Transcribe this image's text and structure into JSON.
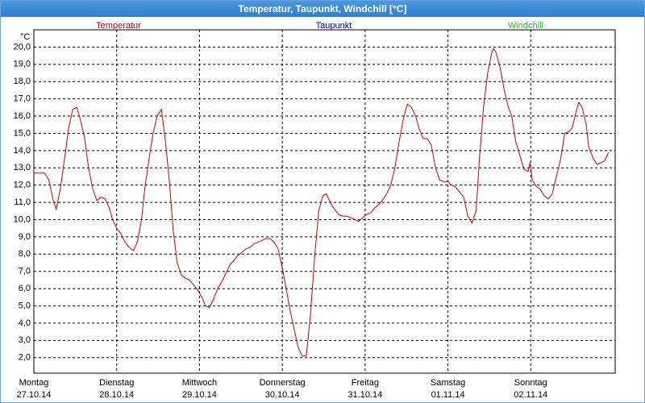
{
  "chart_data": {
    "type": "line",
    "title": "Temperatur, Taupunkt, Windchill [°C]",
    "ylabel": "°C",
    "xlim": [
      0,
      7
    ],
    "ylim": [
      1.1,
      21
    ],
    "grid": true,
    "xticks": [
      {
        "value": 0,
        "label": "Montag",
        "sublabel": "27.10.14"
      },
      {
        "value": 1,
        "label": "Dienstag",
        "sublabel": "28.10.14"
      },
      {
        "value": 2,
        "label": "Mittwoch",
        "sublabel": "29.10.14"
      },
      {
        "value": 3,
        "label": "Donnerstag",
        "sublabel": "30.10.14"
      },
      {
        "value": 4,
        "label": "Freitag",
        "sublabel": "31.10.14"
      },
      {
        "value": 5,
        "label": "Samstag",
        "sublabel": "01.11.14"
      },
      {
        "value": 6,
        "label": "Sonntag",
        "sublabel": "02.11.14"
      }
    ],
    "yticks": [
      {
        "value": 2,
        "label": "2,0"
      },
      {
        "value": 3,
        "label": "3,0"
      },
      {
        "value": 4,
        "label": "4,0"
      },
      {
        "value": 5,
        "label": "5,0"
      },
      {
        "value": 6,
        "label": "6,0"
      },
      {
        "value": 7,
        "label": "7,0"
      },
      {
        "value": 8,
        "label": "8,0"
      },
      {
        "value": 9,
        "label": "9,0"
      },
      {
        "value": 10,
        "label": "10,0"
      },
      {
        "value": 11,
        "label": "11,0"
      },
      {
        "value": 12,
        "label": "12,0"
      },
      {
        "value": 13,
        "label": "13,0"
      },
      {
        "value": 14,
        "label": "14,0"
      },
      {
        "value": 15,
        "label": "15,0"
      },
      {
        "value": 16,
        "label": "16,0"
      },
      {
        "value": 17,
        "label": "17,0"
      },
      {
        "value": 18,
        "label": "18,0"
      },
      {
        "value": 19,
        "label": "19,0"
      },
      {
        "value": 20,
        "label": "20,0"
      }
    ],
    "x": [
      0,
      0.13,
      0.18,
      0.23,
      0.27,
      0.32,
      0.37,
      0.42,
      0.47,
      0.52,
      0.56,
      0.61,
      0.66,
      0.71,
      0.76,
      0.81,
      0.86,
      0.91,
      0.95,
      1.0,
      1.05,
      1.1,
      1.15,
      1.2,
      1.25,
      1.3,
      1.34,
      1.39,
      1.44,
      1.49,
      1.54,
      1.59,
      1.64,
      1.68,
      1.73,
      1.78,
      1.83,
      1.88,
      1.93,
      1.98,
      2.03,
      2.07,
      2.12,
      2.17,
      2.22,
      2.27,
      2.32,
      2.37,
      2.41,
      2.46,
      2.51,
      2.56,
      2.61,
      2.66,
      2.71,
      2.76,
      2.8,
      2.85,
      2.9,
      2.95,
      3.0,
      3.05,
      3.1,
      3.15,
      3.19,
      3.24,
      3.29,
      3.34,
      3.39,
      3.44,
      3.49,
      3.53,
      3.58,
      3.63,
      3.68,
      3.73,
      3.78,
      3.83,
      3.88,
      3.92,
      3.97,
      4.02,
      4.07,
      4.12,
      4.17,
      4.22,
      4.26,
      4.31,
      4.36,
      4.41,
      4.46,
      4.51,
      4.56,
      4.61,
      4.65,
      4.7,
      4.75,
      4.8,
      4.85,
      4.9,
      4.95,
      5.0,
      5.04,
      5.09,
      5.14,
      5.19,
      5.24,
      5.29,
      5.34,
      5.38,
      5.43,
      5.48,
      5.53,
      5.55,
      5.58,
      5.63,
      5.68,
      5.73,
      5.77,
      5.82,
      5.87,
      5.92,
      5.97,
      5.99,
      6.02,
      6.07,
      6.11,
      6.16,
      6.21,
      6.26,
      6.31,
      6.36,
      6.41,
      6.46,
      6.5,
      6.55,
      6.58,
      6.62,
      6.67,
      6.7,
      6.75,
      6.8,
      6.85,
      6.89,
      6.94
    ],
    "series": [
      {
        "name": "Temperatur",
        "color": "#cc0000",
        "values": [
          12.7,
          12.7,
          12.3,
          11.2,
          10.6,
          11.8,
          13.5,
          15.3,
          16.4,
          16.5,
          15.8,
          14.8,
          13.0,
          11.8,
          11.1,
          11.3,
          11.2,
          10.7,
          10.0,
          9.5,
          9.2,
          8.7,
          8.4,
          8.2,
          8.7,
          10.0,
          11.8,
          13.5,
          15.0,
          16.0,
          16.4,
          14.5,
          12.0,
          9.5,
          7.5,
          6.8,
          6.6,
          6.5,
          6.2,
          5.9,
          5.5,
          5.0,
          4.9,
          5.4,
          6.0,
          6.4,
          6.9,
          7.4,
          7.6,
          7.9,
          8.1,
          8.3,
          8.4,
          8.6,
          8.7,
          8.8,
          8.9,
          8.9,
          8.7,
          8.3,
          7.2,
          5.9,
          4.6,
          3.5,
          2.6,
          2.1,
          2.1,
          4.5,
          7.8,
          10.5,
          11.4,
          11.5,
          11.0,
          10.6,
          10.3,
          10.2,
          10.2,
          10.1,
          10.0,
          9.9,
          10.1,
          10.3,
          10.4,
          10.7,
          10.9,
          11.2,
          11.5,
          12.0,
          13.0,
          14.5,
          15.8,
          16.7,
          16.5,
          16.0,
          15.3,
          14.7,
          14.7,
          14.3,
          13.0,
          12.3,
          12.2,
          12.2,
          12.0,
          11.9,
          11.6,
          11.3,
          10.2,
          9.8,
          10.5,
          13.5,
          16.5,
          18.5,
          19.7,
          19.9,
          19.7,
          18.8,
          17.5,
          16.5,
          16.0,
          14.5,
          13.7,
          12.9,
          12.8,
          13.3,
          12.3,
          11.9,
          11.8,
          11.4,
          11.2,
          11.5,
          12.5,
          13.5,
          15.0,
          15.1,
          15.3,
          16.3,
          16.8,
          16.5,
          15.5,
          14.2,
          13.6,
          13.2,
          13.3,
          13.4,
          13.9
        ]
      },
      {
        "name": "Taupunkt",
        "color": "#0000cc"
      },
      {
        "name": "Windchill",
        "color": "#22bb22"
      }
    ]
  }
}
